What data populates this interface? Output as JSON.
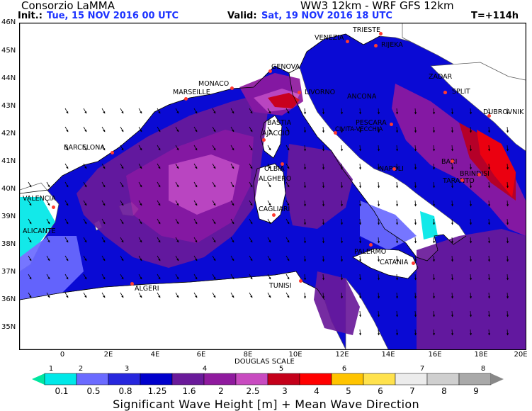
{
  "header": {
    "org": "Consorzio LaMMA",
    "model": "WW3 12km - WRF GFS 12km",
    "init_label": "Init.:",
    "init_value": "Tue, 15 NOV 2016  00 UTC",
    "valid_label": "Valid:",
    "valid_value": "Sat, 19 NOV 2016  18 UTC",
    "lead": "T=+114h"
  },
  "axes": {
    "lat_labels": [
      "46N",
      "45N",
      "44N",
      "43N",
      "42N",
      "41N",
      "40N",
      "39N",
      "38N",
      "37N",
      "36N",
      "35N"
    ],
    "lon_labels": [
      "0",
      "2E",
      "4E",
      "6E",
      "8E",
      "10E",
      "12E",
      "14E",
      "16E",
      "18E",
      "20E"
    ]
  },
  "cities": [
    {
      "name": "TRIESTE"
    },
    {
      "name": "VENEZIA"
    },
    {
      "name": "RIJEKA"
    },
    {
      "name": "GENOVA"
    },
    {
      "name": "MONACO"
    },
    {
      "name": "MARSEILLE"
    },
    {
      "name": "LIVORNO"
    },
    {
      "name": "ANCONA"
    },
    {
      "name": "ZADAR"
    },
    {
      "name": "SPLIT"
    },
    {
      "name": "DUBROVNIK"
    },
    {
      "name": "BASTIA"
    },
    {
      "name": "AJACCIO"
    },
    {
      "name": "PESCARA"
    },
    {
      "name": "CIVITA-VECCHIA"
    },
    {
      "name": "BARCELONA"
    },
    {
      "name": "BARI"
    },
    {
      "name": "OLBIA"
    },
    {
      "name": "ALGHERO"
    },
    {
      "name": "NAPOLI"
    },
    {
      "name": "BRINDISI"
    },
    {
      "name": "TARANTO"
    },
    {
      "name": "VALENCIA"
    },
    {
      "name": "CAGLIARI"
    },
    {
      "name": "ALICANTE"
    },
    {
      "name": "PALERMO"
    },
    {
      "name": "CATANIA"
    },
    {
      "name": "TUNISI"
    },
    {
      "name": "ALGERI"
    }
  ],
  "legend": {
    "douglas_title": "DOUGLAS SCALE",
    "douglas_values": [
      "1",
      "2",
      "3",
      "4",
      "5",
      "6",
      "7",
      "8"
    ],
    "height_values": [
      "0.1",
      "0.5",
      "0.8",
      "1.25",
      "1.6",
      "2",
      "2.5",
      "3",
      "4",
      "5",
      "6",
      "7",
      "8",
      "9"
    ],
    "colors": [
      "#00e6a0",
      "#00e8e8",
      "#6b6bff",
      "#2727dd",
      "#0000cc",
      "#6a1a9a",
      "#8f1a9e",
      "#c84bc0",
      "#c4001a",
      "#ff0000",
      "#ffc400",
      "#ffe24d",
      "#ececec",
      "#cfcfcf",
      "#a9a9a9",
      "#888888"
    ],
    "title": "Significant Wave Height [m] + Mean Wave Direction"
  }
}
